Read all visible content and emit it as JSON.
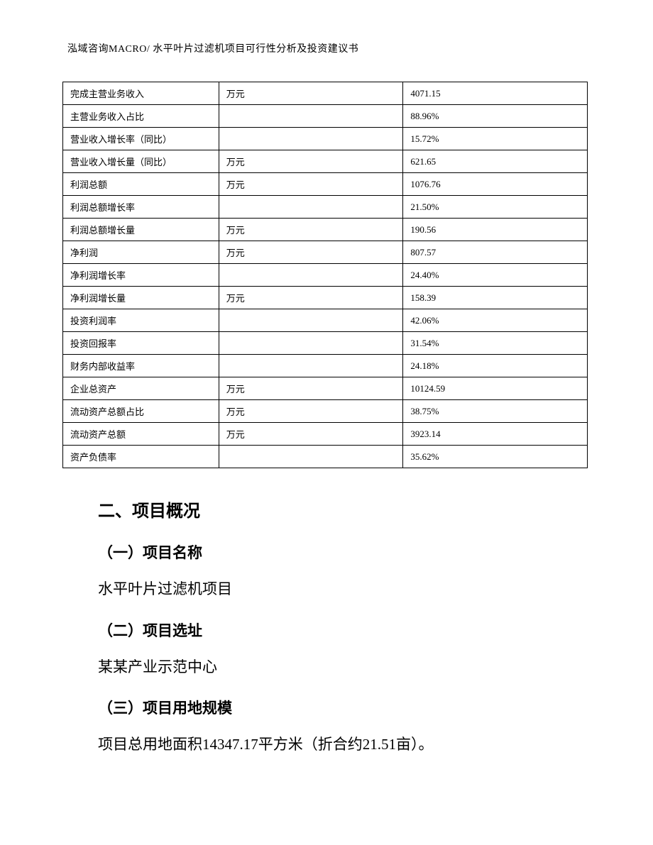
{
  "header": {
    "text": "泓域咨询MACRO/   水平叶片过滤机项目可行性分析及投资建议书"
  },
  "table": {
    "rows": [
      {
        "label": "完成主营业务收入",
        "unit": "万元",
        "value": "4071.15"
      },
      {
        "label": "主营业务收入占比",
        "unit": "",
        "value": "88.96%"
      },
      {
        "label": "营业收入增长率（同比）",
        "unit": "",
        "value": "15.72%"
      },
      {
        "label": "营业收入增长量（同比）",
        "unit": "万元",
        "value": "621.65"
      },
      {
        "label": "利润总额",
        "unit": "万元",
        "value": "1076.76"
      },
      {
        "label": "利润总额增长率",
        "unit": "",
        "value": "21.50%"
      },
      {
        "label": "利润总额增长量",
        "unit": "万元",
        "value": "190.56"
      },
      {
        "label": "净利润",
        "unit": "万元",
        "value": "807.57"
      },
      {
        "label": "净利润增长率",
        "unit": "",
        "value": "24.40%"
      },
      {
        "label": "净利润增长量",
        "unit": "万元",
        "value": "158.39"
      },
      {
        "label": "投资利润率",
        "unit": "",
        "value": "42.06%"
      },
      {
        "label": "投资回报率",
        "unit": "",
        "value": "31.54%"
      },
      {
        "label": "财务内部收益率",
        "unit": "",
        "value": "24.18%"
      },
      {
        "label": "企业总资产",
        "unit": "万元",
        "value": "10124.59"
      },
      {
        "label": "流动资产总额占比",
        "unit": "万元",
        "value": "38.75%"
      },
      {
        "label": "流动资产总额",
        "unit": "万元",
        "value": "3923.14"
      },
      {
        "label": "资产负债率",
        "unit": "",
        "value": "35.62%"
      }
    ]
  },
  "content": {
    "section_title": "二、项目概况",
    "sub1_title": "（一）项目名称",
    "sub1_text": "水平叶片过滤机项目",
    "sub2_title": "（二）项目选址",
    "sub2_text": "某某产业示范中心",
    "sub3_title": "（三）项目用地规模",
    "sub3_text": "项目总用地面积14347.17平方米（折合约21.51亩）。"
  }
}
